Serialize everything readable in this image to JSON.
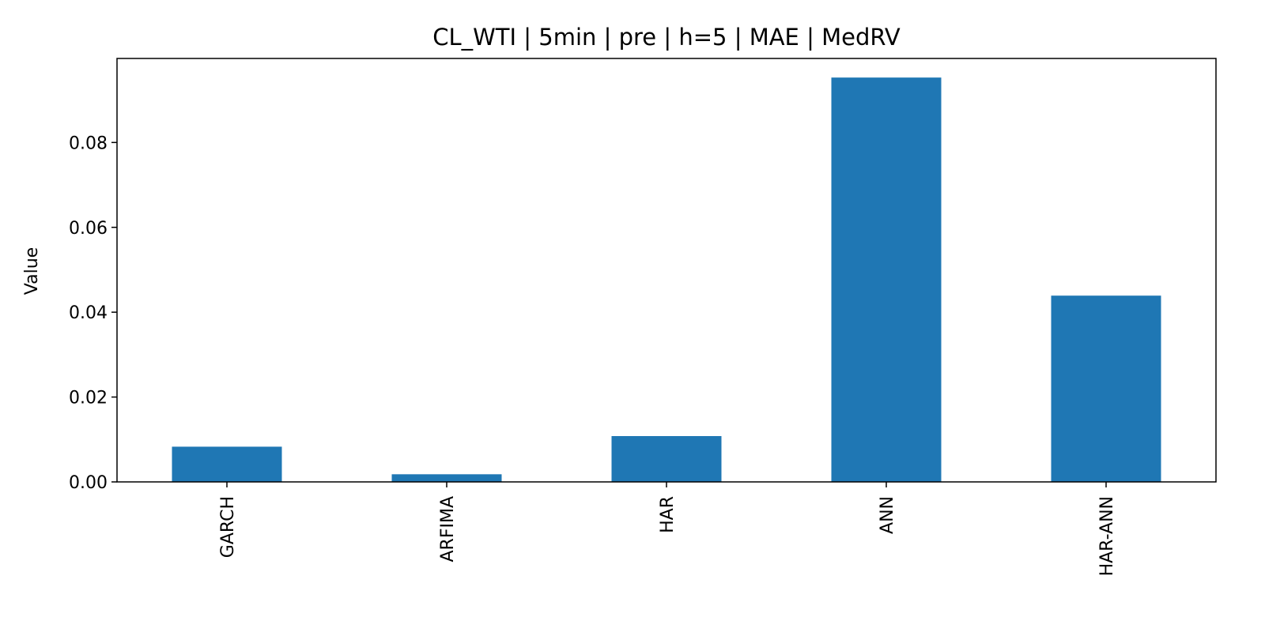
{
  "chart_data": {
    "type": "bar",
    "title": "CL_WTI | 5min | pre | h=5 | MAE | MedRV",
    "xlabel": "",
    "ylabel": "Value",
    "categories": [
      "GARCH",
      "ARFIMA",
      "HAR",
      "ANN",
      "HAR-ANN"
    ],
    "values": [
      0.0083,
      0.0018,
      0.0108,
      0.0953,
      0.0439
    ],
    "ylim": [
      0,
      0.0998
    ],
    "yticks": [
      0.0,
      0.02,
      0.04,
      0.06,
      0.08
    ],
    "ytick_labels": [
      "0.00",
      "0.02",
      "0.04",
      "0.06",
      "0.08"
    ],
    "xtick_rotation": "vertical",
    "grid": false,
    "bar_color": "#1f77b4"
  }
}
